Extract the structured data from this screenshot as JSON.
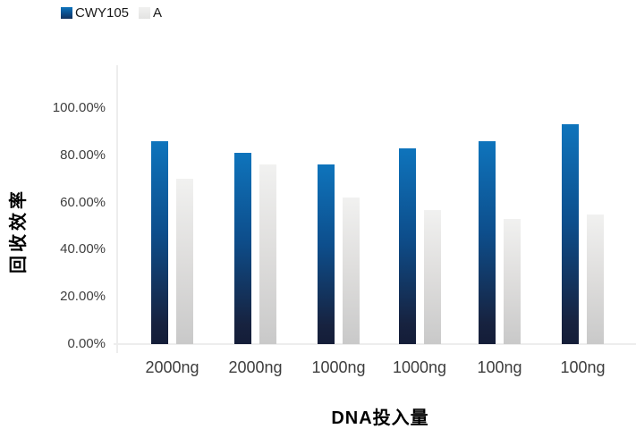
{
  "legend": {
    "items": [
      {
        "label": "CWY105",
        "swatch": "blue-gradient-square"
      },
      {
        "label": "A",
        "swatch": "light-gray-square"
      }
    ]
  },
  "chart_data": {
    "type": "bar",
    "title": "",
    "categories": [
      "2000ng",
      "2000ng",
      "1000ng",
      "1000ng",
      "100ng",
      "100ng"
    ],
    "series": [
      {
        "name": "CWY105",
        "values": [
          86,
          81,
          76,
          83,
          86,
          93
        ],
        "color_gradient": [
          "#0e74bc",
          "#0d4e8c",
          "#141d38"
        ]
      },
      {
        "name": "A",
        "values": [
          70,
          76,
          62,
          57,
          53,
          55
        ],
        "color_gradient": [
          "#f1f1f0",
          "#c9c9c9"
        ]
      }
    ],
    "values_unit": "%",
    "xlabel": "DNA投入量",
    "ylabel": "回收效率",
    "ylim": [
      0,
      100
    ],
    "ytick_step": 20,
    "yticks": [
      "0.00%",
      "20.00%",
      "40.00%",
      "60.00%",
      "80.00%",
      "100.00%"
    ],
    "grid": false,
    "legend_position": "top-left"
  },
  "colors": {
    "axis_line": "#ededed",
    "tick_text": "#3f3f3f",
    "title_text": "#000000",
    "background": "#ffffff"
  }
}
